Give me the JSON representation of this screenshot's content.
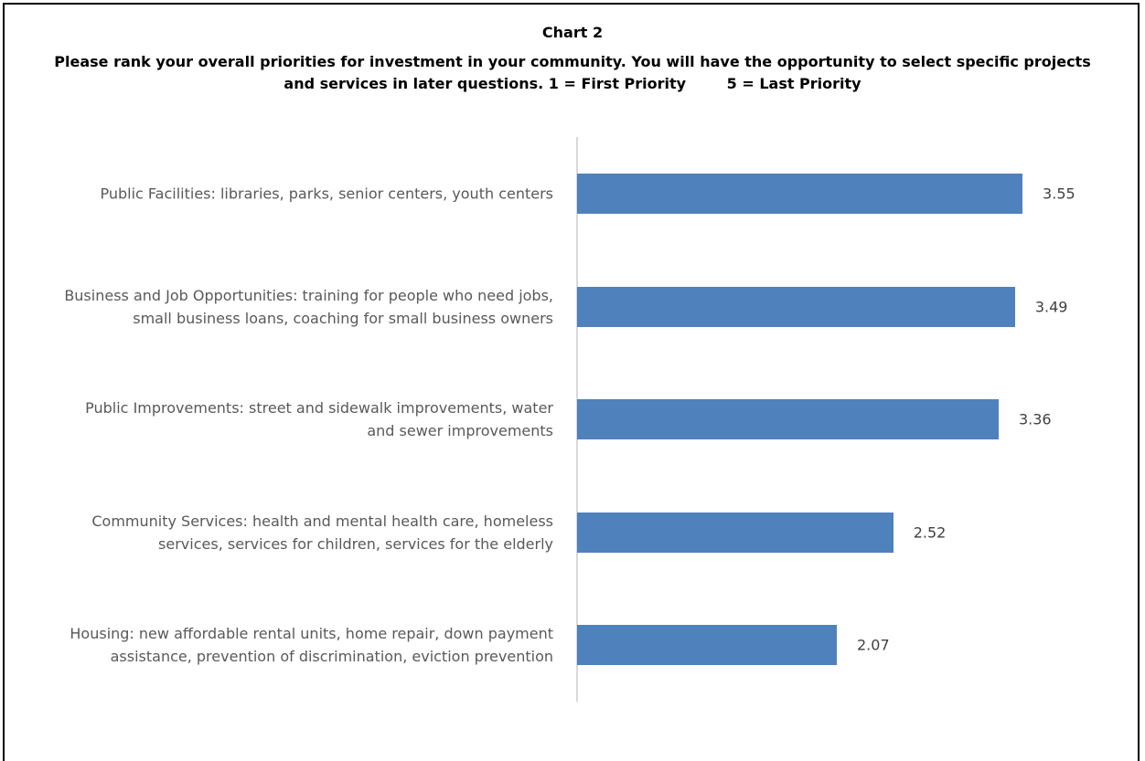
{
  "chart_data": {
    "type": "bar",
    "orientation": "horizontal",
    "title": "Chart 2",
    "subtitle": "Please rank your overall priorities for investment in your community. You will have the opportunity to select specific projects and services in later questions. 1 = First Priority        5 = Last Priority",
    "categories": [
      "Public Facilities: libraries, parks, senior centers, youth centers",
      "Business and Job Opportunities: training for people who need jobs, small business loans, coaching for small business owners",
      "Public Improvements: street and sidewalk improvements, water and sewer improvements",
      "Community Services: health and mental health care, homeless services, services for children, services for the elderly",
      "Housing: new affordable rental units, home repair, down payment assistance, prevention of discrimination, eviction prevention"
    ],
    "values": [
      3.55,
      3.49,
      3.36,
      2.52,
      2.07
    ],
    "color": "#4f81bd"
  }
}
